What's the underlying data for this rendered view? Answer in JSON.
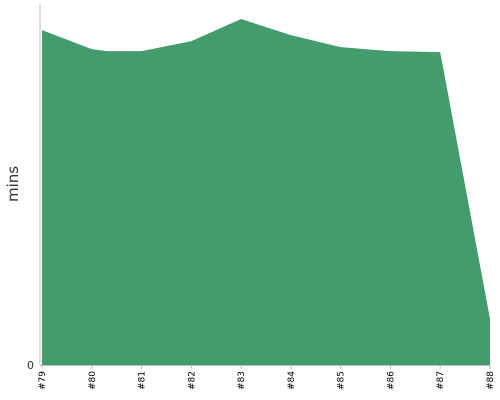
{
  "chart_data": {
    "type": "area",
    "ylabel": "mins",
    "categories": [
      "#79",
      "#80",
      "#81",
      "#82",
      "#83",
      "#84",
      "#85",
      "#86",
      "#87",
      "#88"
    ],
    "points": [
      {
        "x": 0.0,
        "y": 33.4
      },
      {
        "x": 1.0,
        "y": 31.5
      },
      {
        "x": 1.3,
        "y": 31.3
      },
      {
        "x": 2.0,
        "y": 31.3
      },
      {
        "x": 3.0,
        "y": 32.3
      },
      {
        "x": 4.0,
        "y": 34.5
      },
      {
        "x": 5.0,
        "y": 32.9
      },
      {
        "x": 6.0,
        "y": 31.7
      },
      {
        "x": 7.0,
        "y": 31.3
      },
      {
        "x": 8.0,
        "y": 31.2
      },
      {
        "x": 9.0,
        "y": 4.6
      }
    ],
    "ylim": [
      0,
      36
    ],
    "yticks": [
      {
        "value": 0,
        "label": "0"
      }
    ],
    "color": "#449c6d",
    "axis_color": "#bbbbbb",
    "grid": false,
    "legend": "none"
  }
}
